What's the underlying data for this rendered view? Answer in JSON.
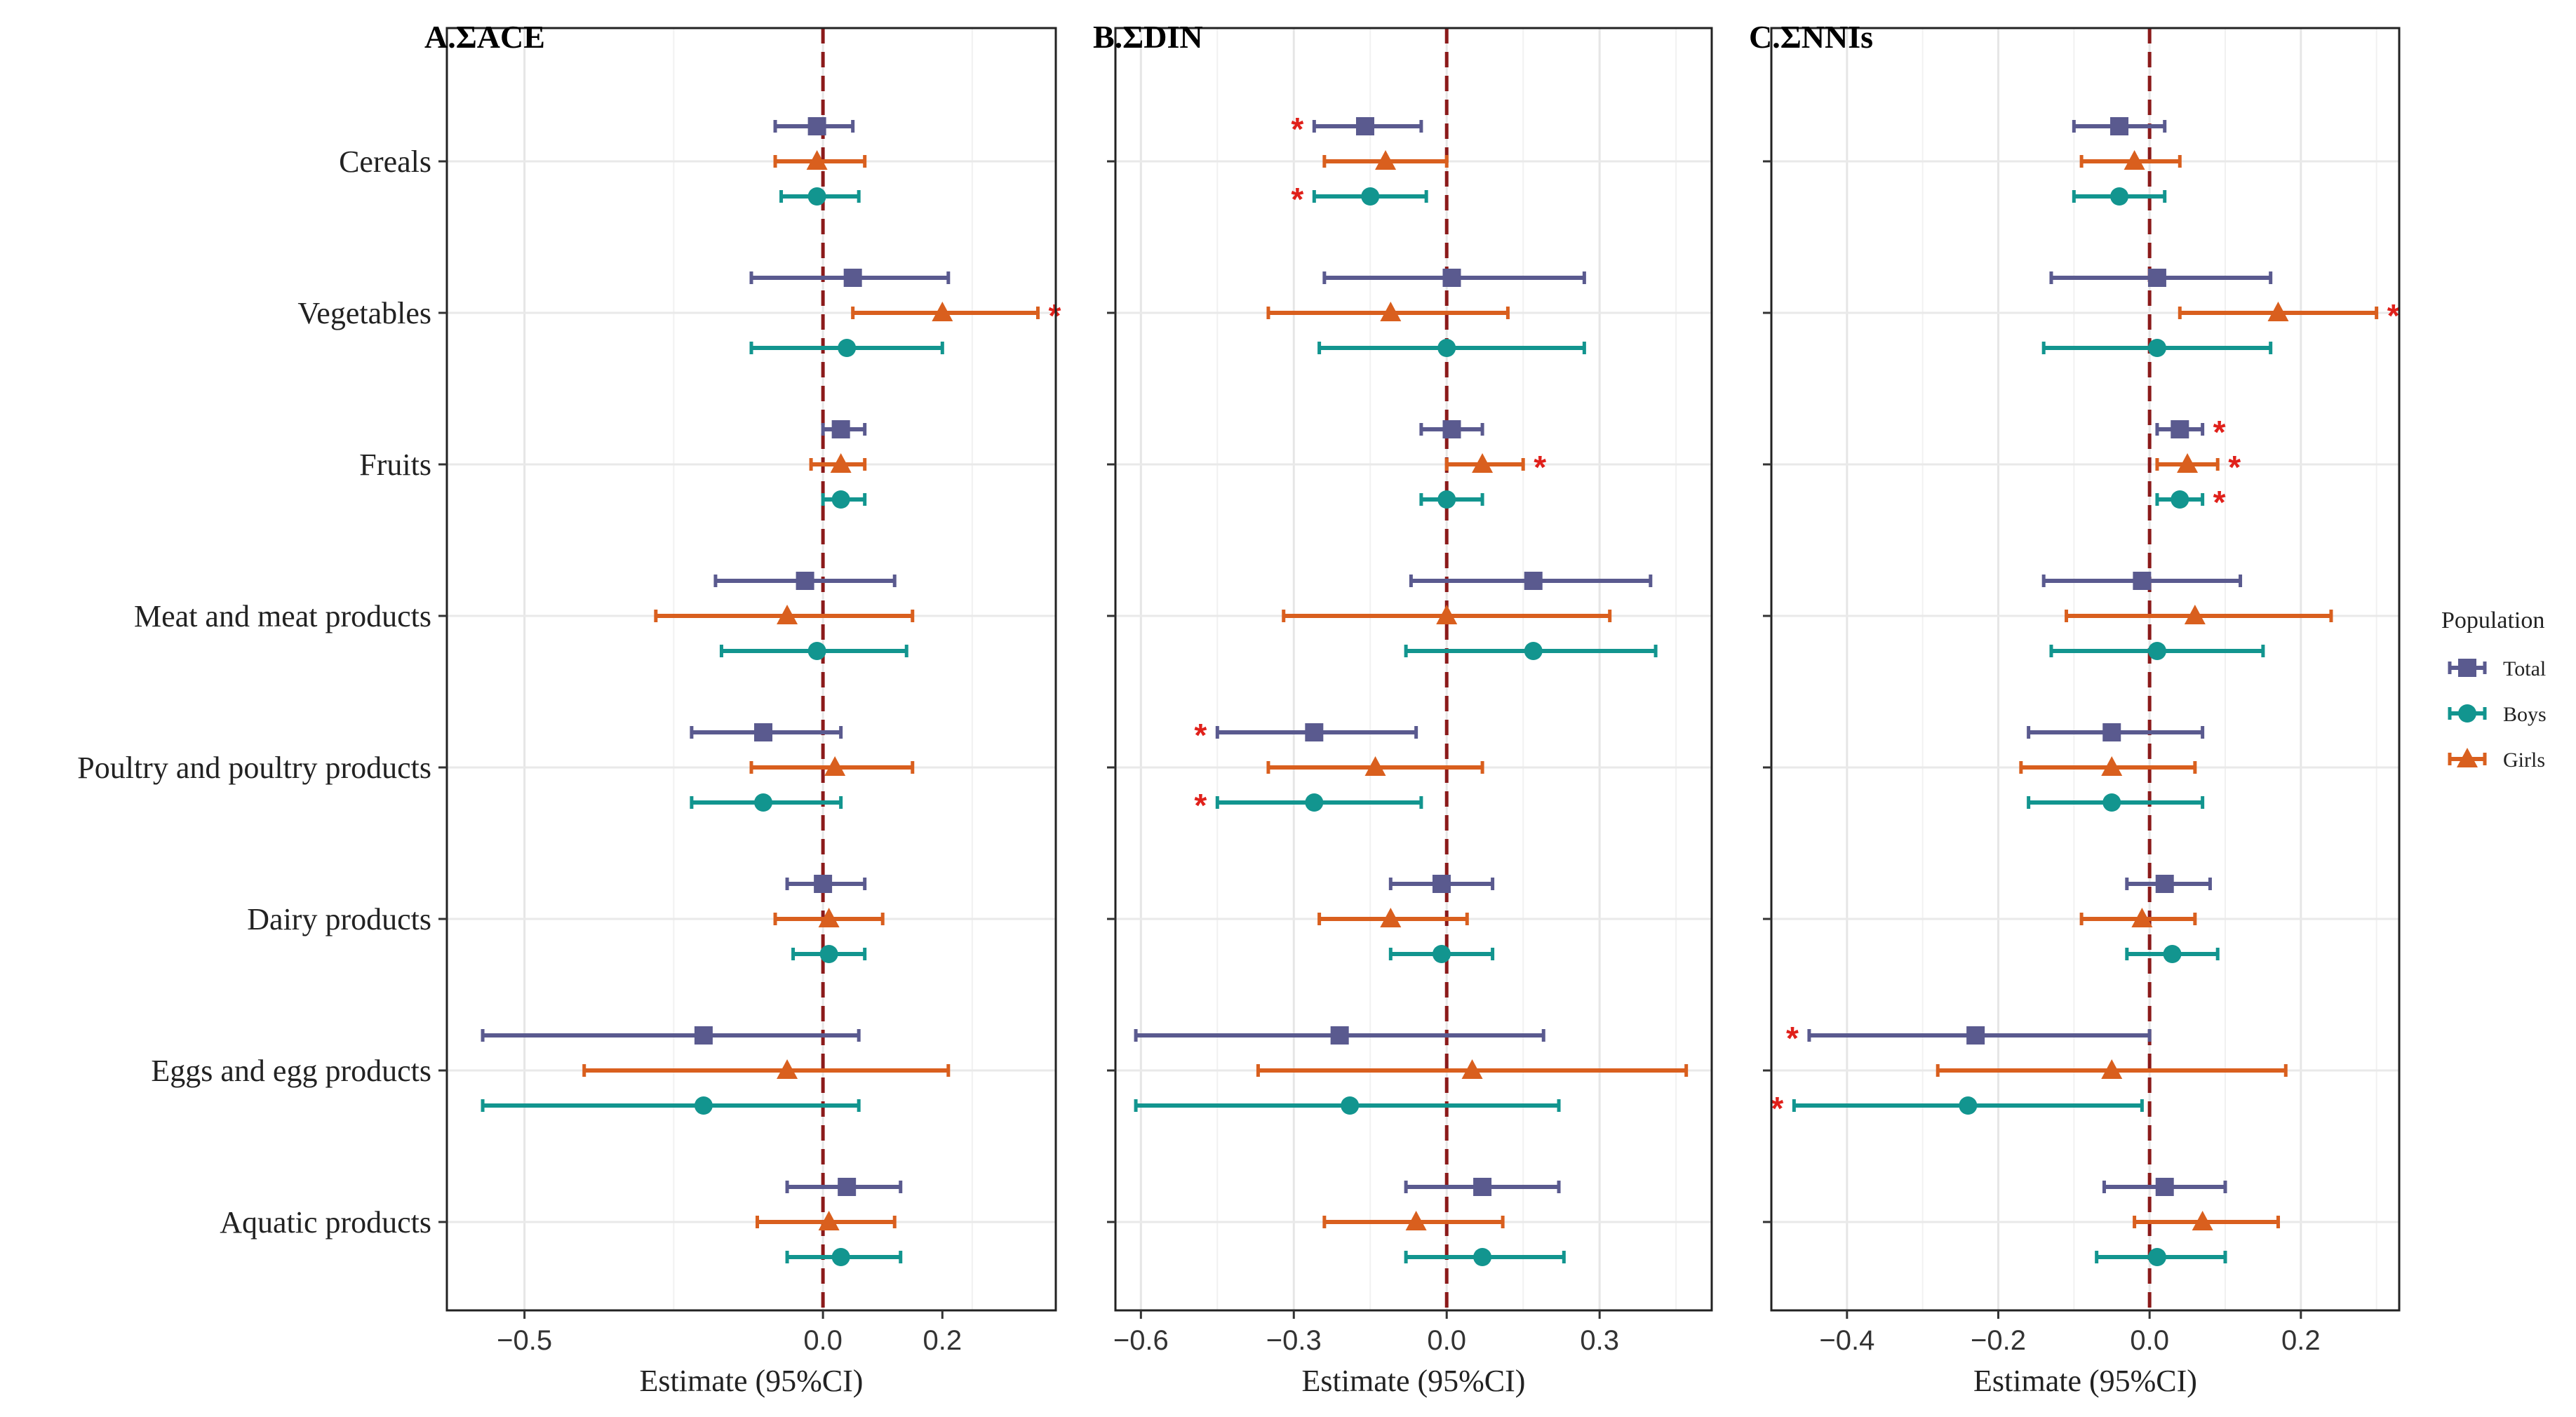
{
  "chart_data": {
    "type": "forest",
    "categories": [
      "Cereals",
      "Vegetables",
      "Fruits",
      "Meat and meat products",
      "Poultry and poultry products",
      "Dairy products",
      "Eggs and egg products",
      "Aquatic products"
    ],
    "xlabel": "Estimate (95%CI)",
    "legend": {
      "title": "Population",
      "placement": "right",
      "entries": [
        {
          "name": "Total",
          "color": "#5a5a8f",
          "marker": "square"
        },
        {
          "name": "Boys",
          "color": "#12958f",
          "marker": "circle"
        },
        {
          "name": "Girls",
          "color": "#d95f1e",
          "marker": "triangle"
        }
      ]
    },
    "reference_line": {
      "x": 0,
      "color": "#8b1a1a",
      "style": "dashed"
    },
    "significance_marker": "*",
    "panels": [
      {
        "title": "A.ΣACE",
        "xlim": [
          -0.63,
          0.39
        ],
        "xticks": [
          -0.5,
          0.0,
          0.2
        ],
        "xtick_labels": [
          "−0.5",
          "0.0",
          "0.2"
        ],
        "series": [
          {
            "name": "Total",
            "points": [
              {
                "est": -0.01,
                "lo": -0.08,
                "hi": 0.05,
                "sig": false
              },
              {
                "est": 0.05,
                "lo": -0.12,
                "hi": 0.21,
                "sig": false
              },
              {
                "est": 0.03,
                "lo": 0.0,
                "hi": 0.07,
                "sig": false
              },
              {
                "est": -0.03,
                "lo": -0.18,
                "hi": 0.12,
                "sig": false
              },
              {
                "est": -0.1,
                "lo": -0.22,
                "hi": 0.03,
                "sig": false
              },
              {
                "est": 0.0,
                "lo": -0.06,
                "hi": 0.07,
                "sig": false
              },
              {
                "est": -0.2,
                "lo": -0.57,
                "hi": 0.06,
                "sig": false
              },
              {
                "est": 0.04,
                "lo": -0.06,
                "hi": 0.13,
                "sig": false
              }
            ]
          },
          {
            "name": "Girls",
            "points": [
              {
                "est": -0.01,
                "lo": -0.08,
                "hi": 0.07,
                "sig": false
              },
              {
                "est": 0.2,
                "lo": 0.05,
                "hi": 0.36,
                "sig": true
              },
              {
                "est": 0.03,
                "lo": -0.02,
                "hi": 0.07,
                "sig": false
              },
              {
                "est": -0.06,
                "lo": -0.28,
                "hi": 0.15,
                "sig": false
              },
              {
                "est": 0.02,
                "lo": -0.12,
                "hi": 0.15,
                "sig": false
              },
              {
                "est": 0.01,
                "lo": -0.08,
                "hi": 0.1,
                "sig": false
              },
              {
                "est": -0.06,
                "lo": -0.4,
                "hi": 0.21,
                "sig": false
              },
              {
                "est": 0.01,
                "lo": -0.11,
                "hi": 0.12,
                "sig": false
              }
            ]
          },
          {
            "name": "Boys",
            "points": [
              {
                "est": -0.01,
                "lo": -0.07,
                "hi": 0.06,
                "sig": false
              },
              {
                "est": 0.04,
                "lo": -0.12,
                "hi": 0.2,
                "sig": false
              },
              {
                "est": 0.03,
                "lo": 0.0,
                "hi": 0.07,
                "sig": false
              },
              {
                "est": -0.01,
                "lo": -0.17,
                "hi": 0.14,
                "sig": false
              },
              {
                "est": -0.1,
                "lo": -0.22,
                "hi": 0.03,
                "sig": false
              },
              {
                "est": 0.01,
                "lo": -0.05,
                "hi": 0.07,
                "sig": false
              },
              {
                "est": -0.2,
                "lo": -0.57,
                "hi": 0.06,
                "sig": false
              },
              {
                "est": 0.03,
                "lo": -0.06,
                "hi": 0.13,
                "sig": false
              }
            ]
          }
        ]
      },
      {
        "title": "B.ΣDIN",
        "xlim": [
          -0.65,
          0.52
        ],
        "xticks": [
          -0.6,
          -0.3,
          0.0,
          0.3
        ],
        "xtick_labels": [
          "−0.6",
          "−0.3",
          "0.0",
          "0.3"
        ],
        "series": [
          {
            "name": "Total",
            "points": [
              {
                "est": -0.16,
                "lo": -0.26,
                "hi": -0.05,
                "sig": true
              },
              {
                "est": 0.01,
                "lo": -0.24,
                "hi": 0.27,
                "sig": false
              },
              {
                "est": 0.01,
                "lo": -0.05,
                "hi": 0.07,
                "sig": false
              },
              {
                "est": 0.17,
                "lo": -0.07,
                "hi": 0.4,
                "sig": false
              },
              {
                "est": -0.26,
                "lo": -0.45,
                "hi": -0.06,
                "sig": true
              },
              {
                "est": -0.01,
                "lo": -0.11,
                "hi": 0.09,
                "sig": false
              },
              {
                "est": -0.21,
                "lo": -0.61,
                "hi": 0.19,
                "sig": false
              },
              {
                "est": 0.07,
                "lo": -0.08,
                "hi": 0.22,
                "sig": false
              }
            ]
          },
          {
            "name": "Girls",
            "points": [
              {
                "est": -0.12,
                "lo": -0.24,
                "hi": 0.0,
                "sig": false
              },
              {
                "est": -0.11,
                "lo": -0.35,
                "hi": 0.12,
                "sig": false
              },
              {
                "est": 0.07,
                "lo": 0.0,
                "hi": 0.15,
                "sig": true
              },
              {
                "est": 0.0,
                "lo": -0.32,
                "hi": 0.32,
                "sig": false
              },
              {
                "est": -0.14,
                "lo": -0.35,
                "hi": 0.07,
                "sig": false
              },
              {
                "est": -0.11,
                "lo": -0.25,
                "hi": 0.04,
                "sig": false
              },
              {
                "est": 0.05,
                "lo": -0.37,
                "hi": 0.47,
                "sig": false
              },
              {
                "est": -0.06,
                "lo": -0.24,
                "hi": 0.11,
                "sig": false
              }
            ]
          },
          {
            "name": "Boys",
            "points": [
              {
                "est": -0.15,
                "lo": -0.26,
                "hi": -0.04,
                "sig": true
              },
              {
                "est": 0.0,
                "lo": -0.25,
                "hi": 0.27,
                "sig": false
              },
              {
                "est": 0.0,
                "lo": -0.05,
                "hi": 0.07,
                "sig": false
              },
              {
                "est": 0.17,
                "lo": -0.08,
                "hi": 0.41,
                "sig": false
              },
              {
                "est": -0.26,
                "lo": -0.45,
                "hi": -0.05,
                "sig": true
              },
              {
                "est": -0.01,
                "lo": -0.11,
                "hi": 0.09,
                "sig": false
              },
              {
                "est": -0.19,
                "lo": -0.61,
                "hi": 0.22,
                "sig": false
              },
              {
                "est": 0.07,
                "lo": -0.08,
                "hi": 0.23,
                "sig": false
              }
            ]
          }
        ]
      },
      {
        "title": "C.ΣNNIs",
        "xlim": [
          -0.5,
          0.33
        ],
        "xticks": [
          -0.4,
          -0.2,
          0.0,
          0.2
        ],
        "xtick_labels": [
          "−0.4",
          "−0.2",
          "0.0",
          "0.2"
        ],
        "series": [
          {
            "name": "Total",
            "points": [
              {
                "est": -0.04,
                "lo": -0.1,
                "hi": 0.02,
                "sig": false
              },
              {
                "est": 0.01,
                "lo": -0.13,
                "hi": 0.16,
                "sig": false
              },
              {
                "est": 0.04,
                "lo": 0.01,
                "hi": 0.07,
                "sig": true
              },
              {
                "est": -0.01,
                "lo": -0.14,
                "hi": 0.12,
                "sig": false
              },
              {
                "est": -0.05,
                "lo": -0.16,
                "hi": 0.07,
                "sig": false
              },
              {
                "est": 0.02,
                "lo": -0.03,
                "hi": 0.08,
                "sig": false
              },
              {
                "est": -0.23,
                "lo": -0.45,
                "hi": 0.0,
                "sig": true
              },
              {
                "est": 0.02,
                "lo": -0.06,
                "hi": 0.1,
                "sig": false
              }
            ]
          },
          {
            "name": "Girls",
            "points": [
              {
                "est": -0.02,
                "lo": -0.09,
                "hi": 0.04,
                "sig": false
              },
              {
                "est": 0.17,
                "lo": 0.04,
                "hi": 0.3,
                "sig": true
              },
              {
                "est": 0.05,
                "lo": 0.01,
                "hi": 0.09,
                "sig": true
              },
              {
                "est": 0.06,
                "lo": -0.11,
                "hi": 0.24,
                "sig": false
              },
              {
                "est": -0.05,
                "lo": -0.17,
                "hi": 0.06,
                "sig": false
              },
              {
                "est": -0.01,
                "lo": -0.09,
                "hi": 0.06,
                "sig": false
              },
              {
                "est": -0.05,
                "lo": -0.28,
                "hi": 0.18,
                "sig": false
              },
              {
                "est": 0.07,
                "lo": -0.02,
                "hi": 0.17,
                "sig": false
              }
            ]
          },
          {
            "name": "Boys",
            "points": [
              {
                "est": -0.04,
                "lo": -0.1,
                "hi": 0.02,
                "sig": false
              },
              {
                "est": 0.01,
                "lo": -0.14,
                "hi": 0.16,
                "sig": false
              },
              {
                "est": 0.04,
                "lo": 0.01,
                "hi": 0.07,
                "sig": true
              },
              {
                "est": 0.01,
                "lo": -0.13,
                "hi": 0.15,
                "sig": false
              },
              {
                "est": -0.05,
                "lo": -0.16,
                "hi": 0.07,
                "sig": false
              },
              {
                "est": 0.03,
                "lo": -0.03,
                "hi": 0.09,
                "sig": false
              },
              {
                "est": -0.24,
                "lo": -0.47,
                "hi": -0.01,
                "sig": true
              },
              {
                "est": 0.01,
                "lo": -0.07,
                "hi": 0.1,
                "sig": false
              }
            ]
          }
        ]
      }
    ]
  }
}
